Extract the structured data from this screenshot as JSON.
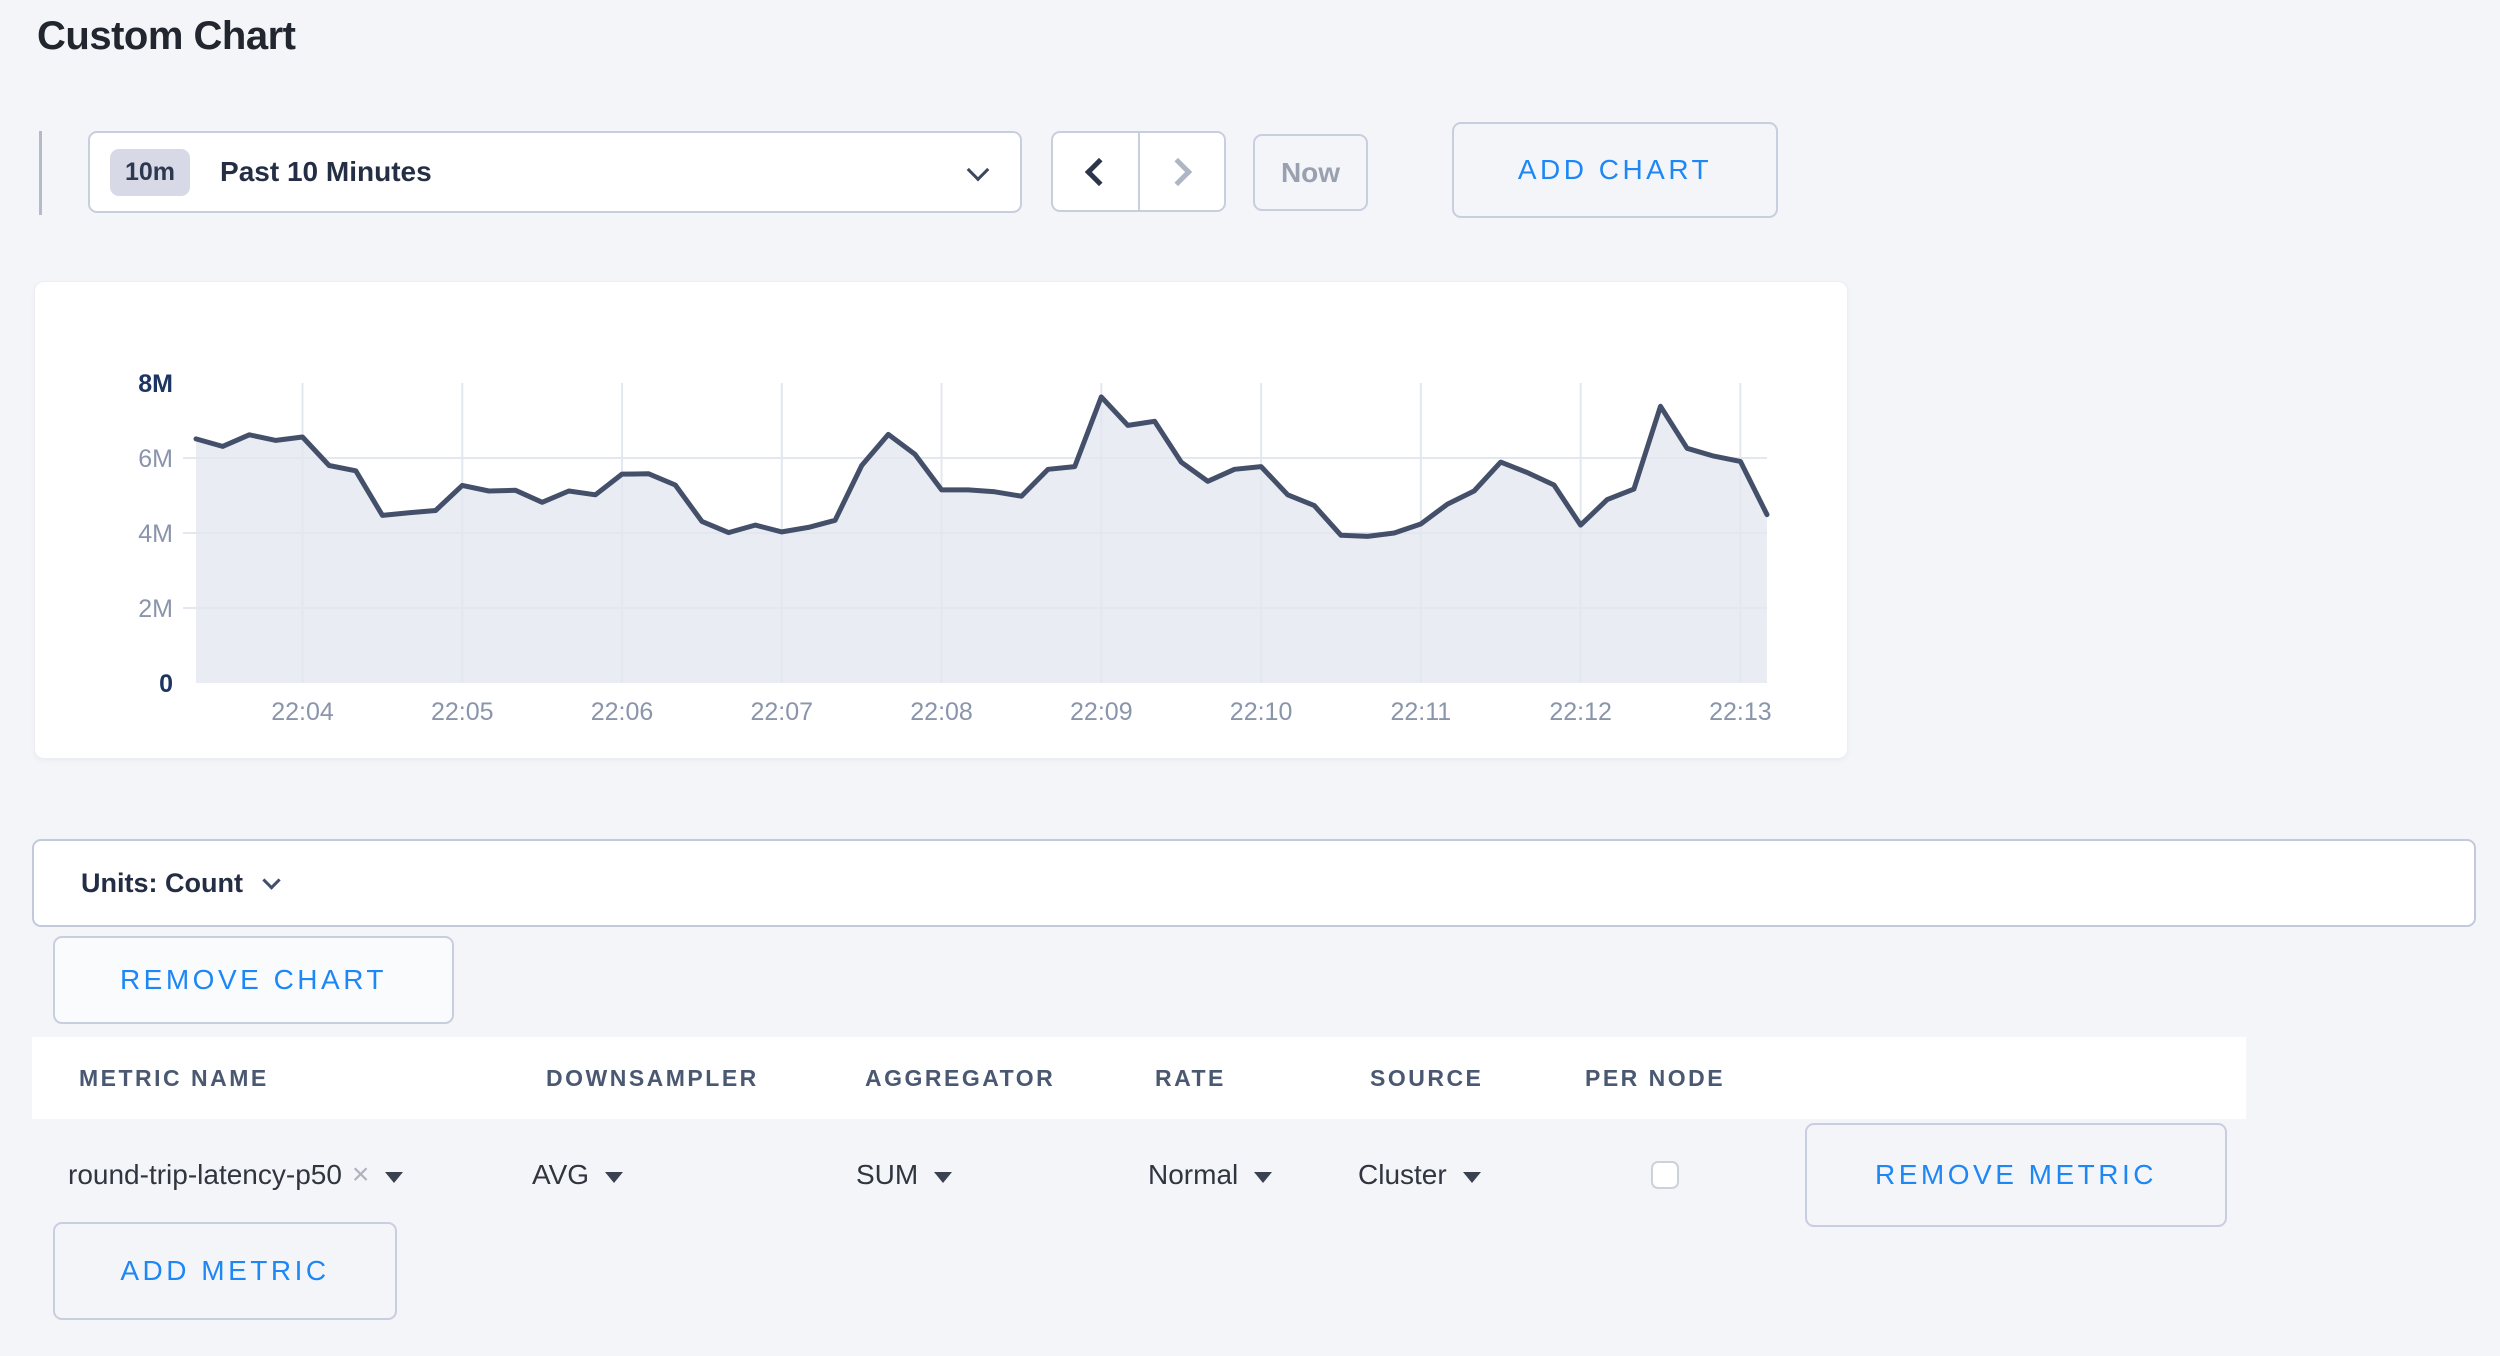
{
  "page": {
    "title": "Custom Chart"
  },
  "toolbar": {
    "range_badge": "10m",
    "range_label": "Past 10 Minutes",
    "now_label": "Now",
    "add_chart_label": "ADD CHART"
  },
  "chart_data": {
    "type": "area",
    "title": "",
    "xlabel": "",
    "ylabel": "",
    "units": "Count",
    "interval_seconds": 10,
    "x_tick_labels": [
      "22:04",
      "22:05",
      "22:06",
      "22:07",
      "22:08",
      "22:09",
      "22:10",
      "22:11",
      "22:12",
      "22:13"
    ],
    "x_tick_indices": [
      4,
      10,
      16,
      22,
      28,
      34,
      40,
      46,
      52,
      58
    ],
    "y_tick_labels": [
      "0",
      "2M",
      "4M",
      "6M",
      "8M"
    ],
    "ylim_millions": [
      0,
      8
    ],
    "grid": true,
    "legend": "none",
    "values_millions": [
      6.51,
      6.31,
      6.62,
      6.47,
      6.56,
      5.8,
      5.66,
      4.47,
      4.54,
      4.6,
      5.27,
      5.12,
      5.14,
      4.82,
      5.12,
      5.02,
      5.57,
      5.58,
      5.28,
      4.31,
      4.01,
      4.21,
      4.03,
      4.15,
      4.34,
      5.8,
      6.63,
      6.1,
      5.15,
      5.15,
      5.1,
      4.98,
      5.7,
      5.77,
      7.63,
      6.87,
      6.98,
      5.89,
      5.38,
      5.7,
      5.77,
      5.02,
      4.73,
      3.94,
      3.91,
      4.0,
      4.24,
      4.77,
      5.12,
      5.89,
      5.61,
      5.28,
      4.21,
      4.89,
      5.17,
      7.38,
      6.26,
      6.05,
      5.91,
      4.49
    ],
    "line_color": "#445069",
    "fill_color": "#e9ecf2",
    "grid_color": "#e3e7ef",
    "axis_label_color": "#8a95ab",
    "axis_bold_color": "#1c3562"
  },
  "units_bar": {
    "label": "Units: Count"
  },
  "chart_actions": {
    "remove_chart_label": "REMOVE CHART"
  },
  "metrics_table": {
    "headers": [
      "METRIC NAME",
      "DOWNSAMPLER",
      "AGGREGATOR",
      "RATE",
      "SOURCE",
      "PER NODE"
    ],
    "row": {
      "metric_name": "round-trip-latency-p50",
      "clear_icon": "×",
      "downsampler": "AVG",
      "aggregator": "SUM",
      "rate": "Normal",
      "source": "Cluster",
      "per_node_checked": false,
      "remove_metric_label": "REMOVE METRIC"
    },
    "add_metric_label": "ADD METRIC"
  }
}
